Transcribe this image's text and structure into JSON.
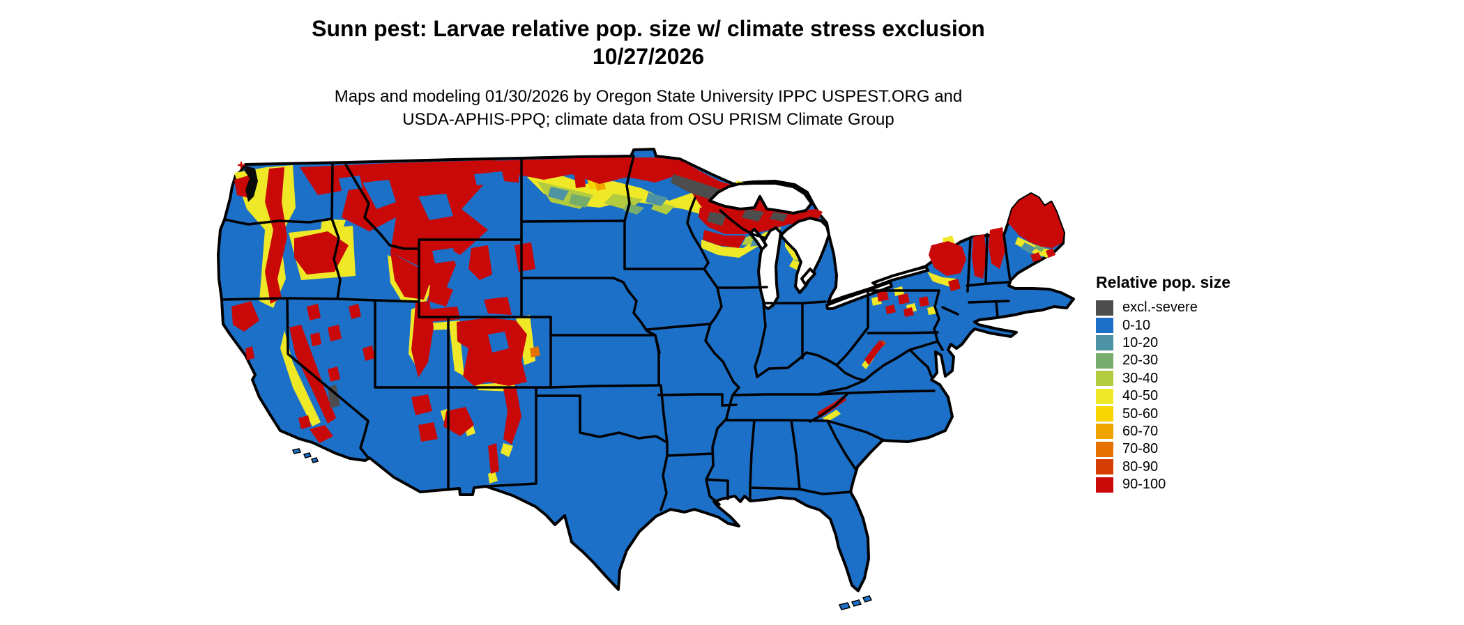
{
  "title": {
    "line1": "Sunn pest: Larvae relative pop. size w/ climate stress exclusion",
    "line2": "10/27/2026"
  },
  "subtitle": {
    "line1": "Maps and modeling 01/30/2026 by Oregon State University IPPC USPEST.ORG and",
    "line2": "USDA-APHIS-PPQ; climate data from OSU PRISM Climate Group"
  },
  "legend": {
    "title": "Relative pop. size",
    "items": [
      {
        "key": "excl",
        "label": "excl.-severe",
        "color": "#4D4D4D"
      },
      {
        "key": "c0_10",
        "label": "0-10",
        "color": "#1C70C7"
      },
      {
        "key": "c10_20",
        "label": "10-20",
        "color": "#4E93A3"
      },
      {
        "key": "c20_30",
        "label": "20-30",
        "color": "#77AD6C"
      },
      {
        "key": "c30_40",
        "label": "30-40",
        "color": "#B3CB3F"
      },
      {
        "key": "c40_50",
        "label": "40-50",
        "color": "#EFE827"
      },
      {
        "key": "c50_60",
        "label": "50-60",
        "color": "#F7D500"
      },
      {
        "key": "c60_70",
        "label": "60-70",
        "color": "#F0A400"
      },
      {
        "key": "c70_80",
        "label": "70-80",
        "color": "#E67100"
      },
      {
        "key": "c80_90",
        "label": "80-90",
        "color": "#D63D03"
      },
      {
        "key": "c90_100",
        "label": "90-100",
        "color": "#C90808"
      }
    ]
  },
  "map": {
    "border_color": "#000000",
    "water_color": "#ffffff",
    "base_class_key": "c0_10"
  },
  "chart_data": {
    "type": "choropleth_map",
    "title": "Sunn pest: Larvae relative pop. size w/ climate stress exclusion",
    "date_shown": "10/27/2026",
    "region": "Contiguous United States with state boundaries and Great Lakes",
    "variable": "Relative pop. size",
    "classes": [
      "excl.-severe",
      "0-10",
      "10-20",
      "20-30",
      "30-40",
      "40-50",
      "50-60",
      "60-70",
      "70-80",
      "80-90",
      "90-100"
    ],
    "class_colors": [
      "#4D4D4D",
      "#1C70C7",
      "#4E93A3",
      "#77AD6C",
      "#B3CB3F",
      "#EFE827",
      "#F7D500",
      "#F0A400",
      "#E67100",
      "#D63D03",
      "#C90808"
    ],
    "pattern_summary": {
      "dominant_class": "0-10 (blue) across most of the central, southern and eastern U.S.",
      "high_90_100_areas": [
        "Cascades and Olympic ranges (WA/OR)",
        "Northern Rockies: N Idaho, W Montana, NE Washington",
        "Blue Mountains (OR)",
        "Sierra Nevada (CA)",
        "Yellowstone / Wind River / Bighorn (WY)",
        "Black Hills (SD)",
        "Wasatch and Uinta ranges (UT)",
        "Colorado Rockies into N New Mexico",
        "Northern border band: N Montana, N North Dakota, N Minnesota",
        "Upper Peninsula and N Wisconsin",
        "Northern Lower Michigan",
        "Adirondacks and Catskills (NY)",
        "Green/White Mountains (VT/NH)",
        "Most of Maine",
        "Scattered N Pennsylvania",
        "Appalachian crests (WV/VA and TN/NC)"
      ],
      "excl_severe_areas": [
        "NE Minnesota arrowhead",
        "Parts of Upper Michigan",
        "Small spot in S Nevada"
      ],
      "transition_band_10_to_80": "Yellow/green/teal mottled band across N North Dakota into Minnesota, fringes around all red mountain areas, southern Maine and NW Lower Michigan"
    },
    "extra_marks": [
      "small red plus marker NW of Washington coast",
      "Florida Keys and Channel Islands drawn as small blue dots",
      "Isle Royale sliver in Lake Superior"
    ]
  }
}
